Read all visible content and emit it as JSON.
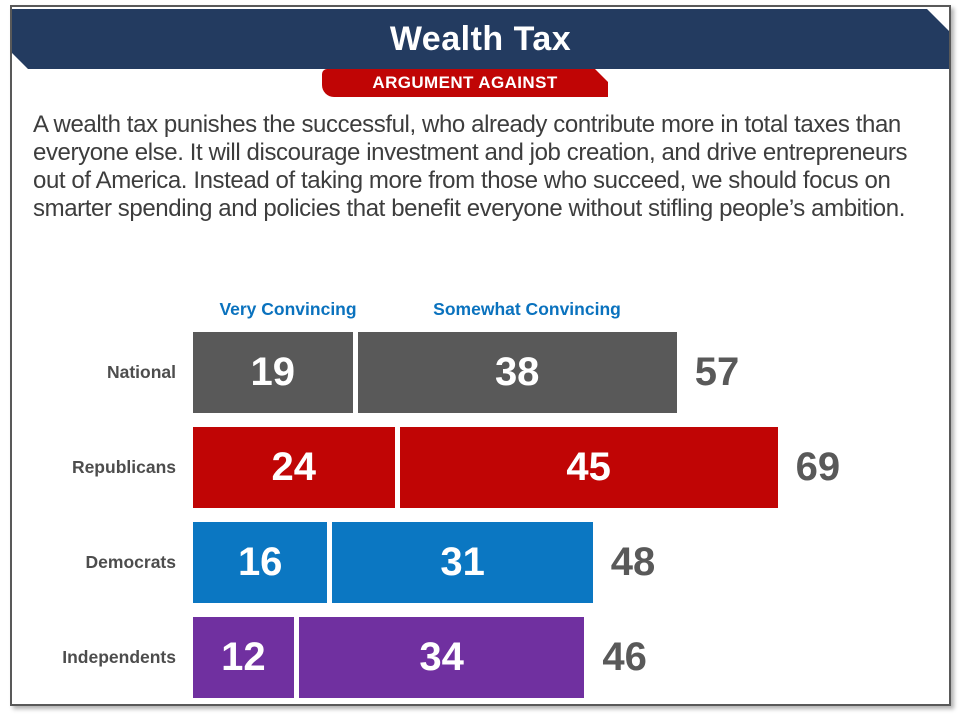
{
  "slide": {
    "title": "Wealth Tax",
    "badge": "ARGUMENT AGAINST",
    "paragraph": "A wealth tax punishes the successful, who already contribute more in total taxes than everyone else. It will discourage investment and job creation, and drive entrepreneurs out of America. Instead of taking more from those who succeed, we should focus on smarter spending and policies that benefit everyone without stifling people’s ambition."
  },
  "colors": {
    "navy": "#233B60",
    "red": "#C00505",
    "gray": "#595959",
    "blue": "#0B77C2",
    "purple": "#7030A0",
    "legend_blue": "#0A72BE",
    "total_gray": "#595959",
    "text": "#3D3D3D"
  },
  "chart_data": {
    "type": "bar",
    "subtype": "horizontal-stacked",
    "title": "Wealth Tax — Argument Against: how convincing",
    "legend": [
      "Very Convincing",
      "Somewhat Convincing"
    ],
    "legend_position": "top",
    "categories": [
      "National",
      "Republicans",
      "Democrats",
      "Independents"
    ],
    "series": [
      {
        "name": "Very Convincing",
        "values": [
          19,
          24,
          16,
          12
        ]
      },
      {
        "name": "Somewhat Convincing",
        "values": [
          38,
          45,
          31,
          34
        ]
      }
    ],
    "totals": [
      57,
      69,
      48,
      46
    ],
    "bar_colors": [
      "#595959",
      "#C00505",
      "#0B77C2",
      "#7030A0"
    ],
    "value_labels": "inside-white",
    "axis": "none",
    "grid": false
  }
}
